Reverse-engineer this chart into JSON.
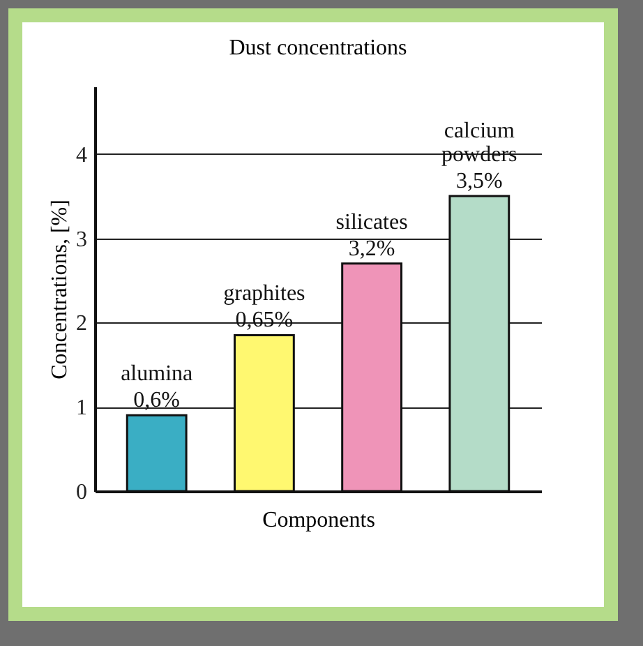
{
  "chart_data": {
    "type": "bar",
    "title": "Dust concentrations",
    "xlabel": "Components",
    "ylabel": "Concentrations, [%]",
    "categories": [
      "alumina",
      "graphites",
      "silicates",
      "calcium powders"
    ],
    "values": [
      0.9,
      1.85,
      2.7,
      3.5
    ],
    "colors": [
      "#3aaec4",
      "#fff870",
      "#ef94b8",
      "#b4dcc8"
    ],
    "annotations": [
      {
        "text": "0,6%",
        "x": "alumina",
        "y": 0.9
      },
      {
        "text": "0,65%",
        "x": "graphites",
        "y": 1.85
      },
      {
        "text": "3,2%",
        "x": "silicates",
        "y": 2.7
      },
      {
        "text": "3,5%",
        "x": "calcium powders",
        "y": 3.5
      }
    ],
    "ylim": [
      0,
      4.8
    ],
    "yticks": [
      0,
      1,
      2,
      3,
      4
    ],
    "grid": "y"
  }
}
